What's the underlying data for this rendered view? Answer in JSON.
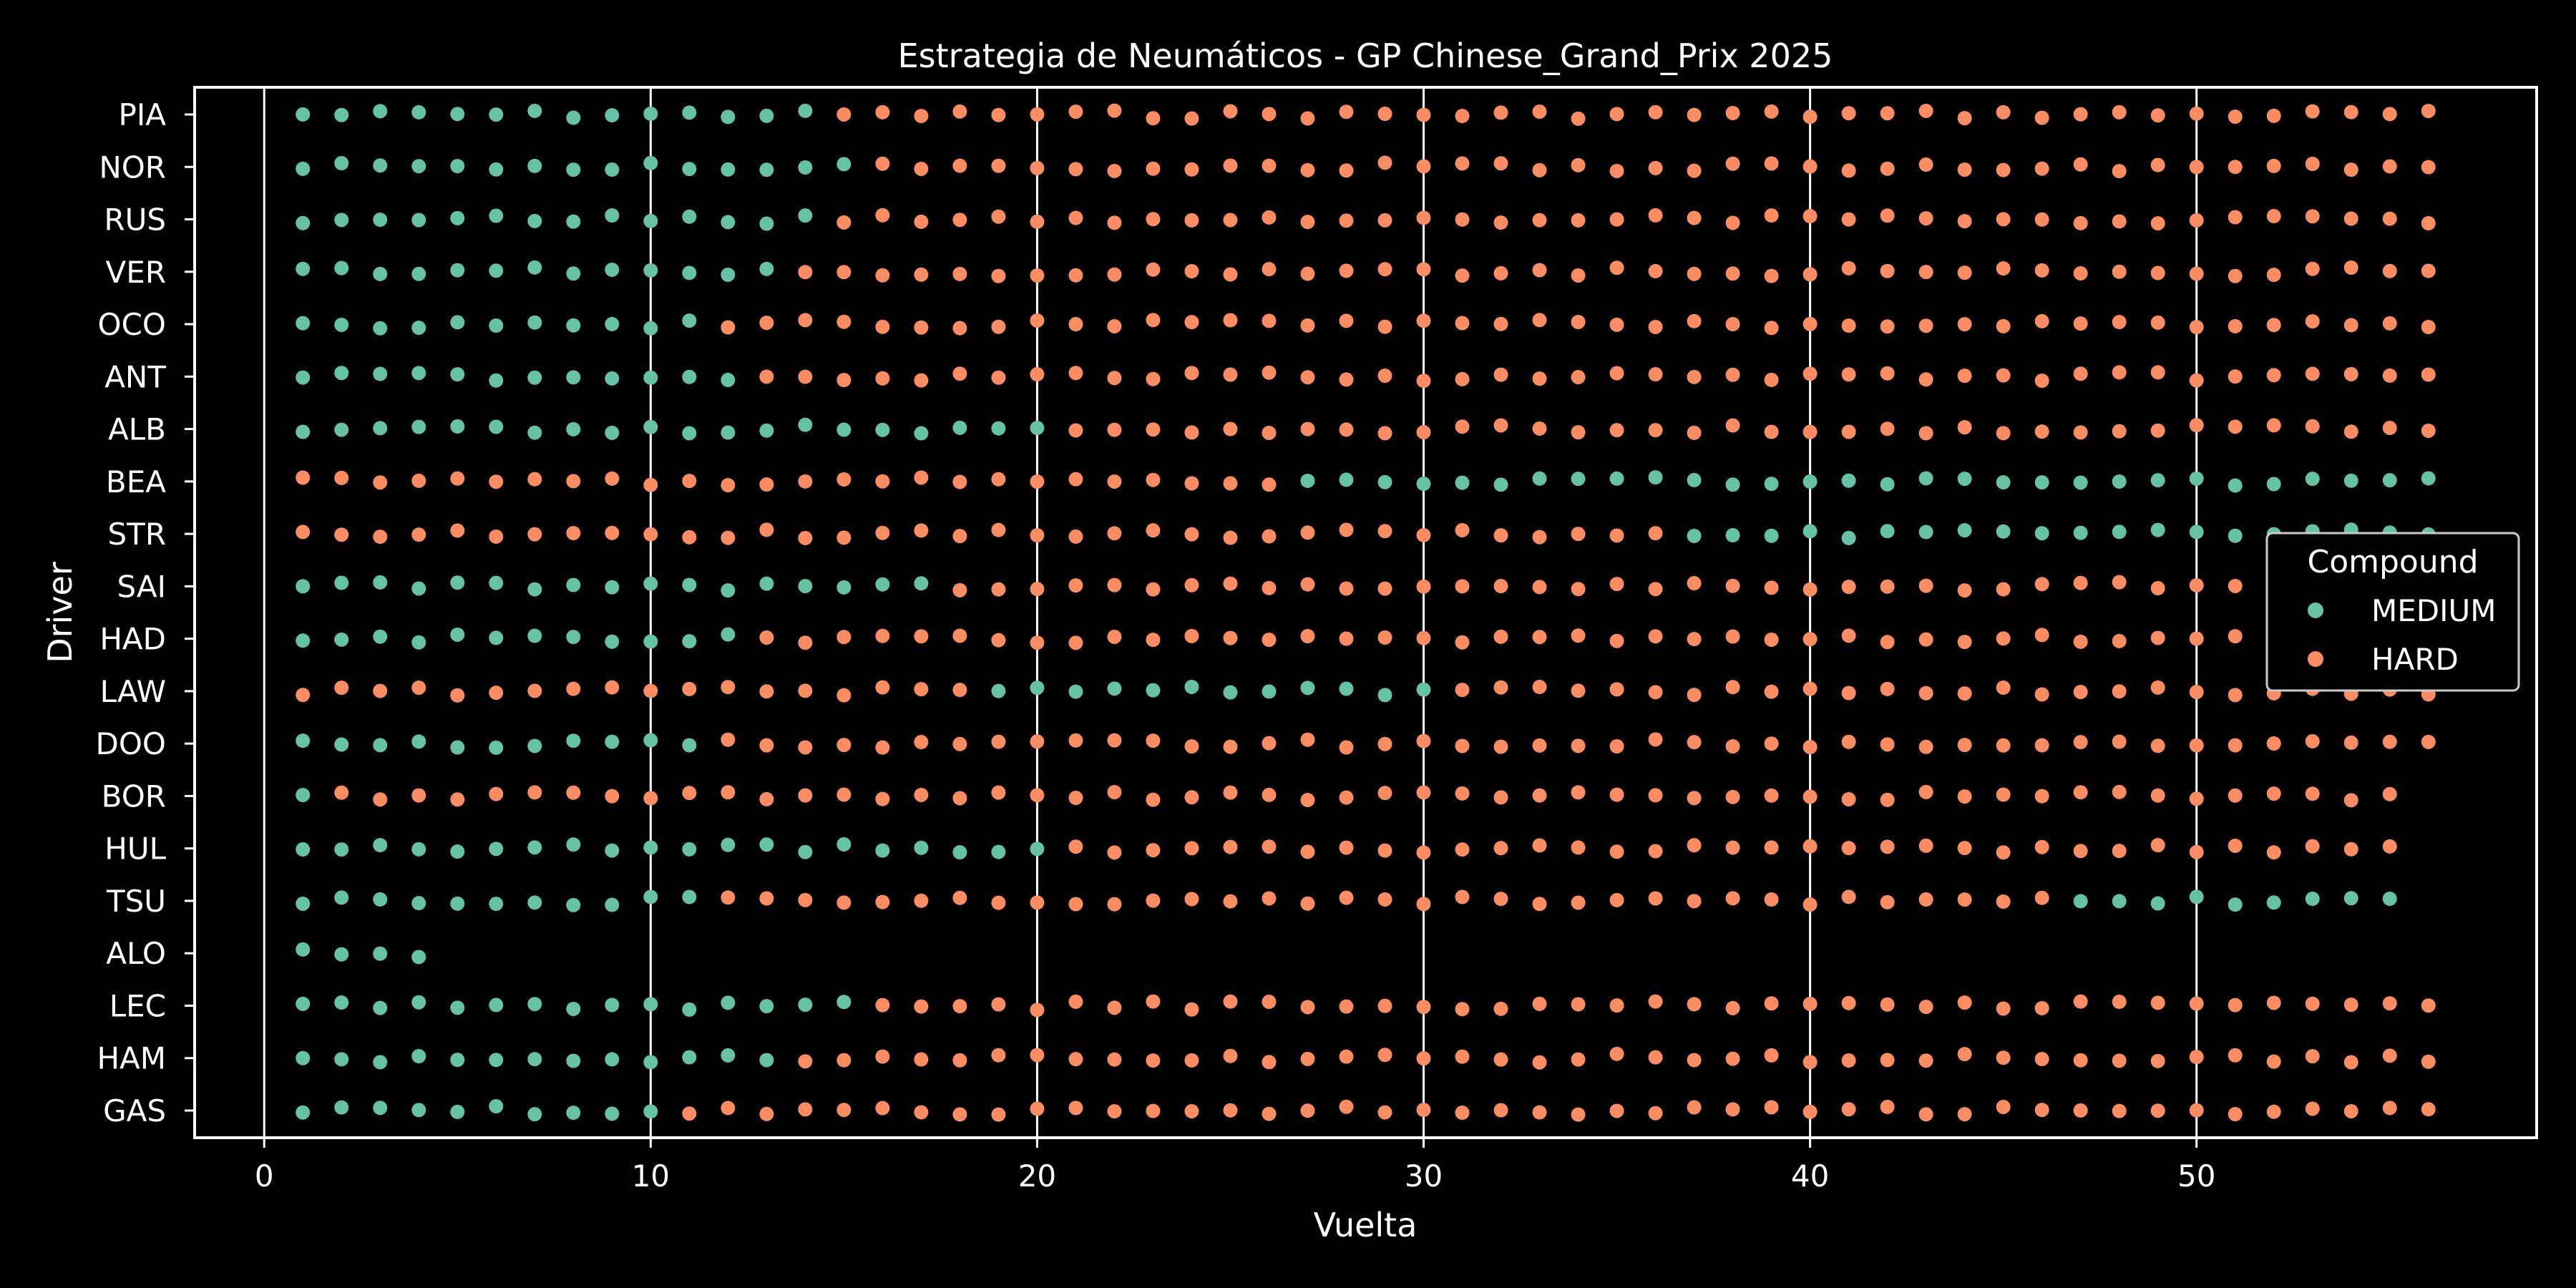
{
  "chart_data": {
    "type": "scatter",
    "title": "Estrategia de Neumáticos - GP Chinese_Grand_Prix 2025",
    "xlabel": "Vuelta",
    "ylabel": "Driver",
    "xlim": [
      -1.8,
      58.8
    ],
    "xticks": [
      0,
      10,
      20,
      30,
      40,
      50
    ],
    "grid": "vertical lines at each x tick",
    "legend": {
      "title": "Compound",
      "placement": "center-right",
      "entries": [
        {
          "label": "MEDIUM",
          "color": "#66c2a5"
        },
        {
          "label": "HARD",
          "color": "#fc8d62"
        }
      ]
    },
    "colors": {
      "MEDIUM": "#66c2a5",
      "HARD": "#fc8d62",
      "background": "#000000",
      "foreground": "#ffffff"
    },
    "drivers": [
      "PIA",
      "NOR",
      "RUS",
      "VER",
      "OCO",
      "ANT",
      "ALB",
      "BEA",
      "STR",
      "SAI",
      "HAD",
      "LAW",
      "DOO",
      "BOR",
      "HUL",
      "TSU",
      "ALO",
      "LEC",
      "HAM",
      "GAS"
    ],
    "stints": {
      "PIA": [
        {
          "compound": "MEDIUM",
          "laps": [
            1,
            14
          ]
        },
        {
          "compound": "HARD",
          "laps": [
            15,
            56
          ]
        }
      ],
      "NOR": [
        {
          "compound": "MEDIUM",
          "laps": [
            1,
            15
          ]
        },
        {
          "compound": "HARD",
          "laps": [
            16,
            56
          ]
        }
      ],
      "RUS": [
        {
          "compound": "MEDIUM",
          "laps": [
            1,
            14
          ]
        },
        {
          "compound": "HARD",
          "laps": [
            15,
            56
          ]
        }
      ],
      "VER": [
        {
          "compound": "MEDIUM",
          "laps": [
            1,
            13
          ]
        },
        {
          "compound": "HARD",
          "laps": [
            14,
            56
          ]
        }
      ],
      "OCO": [
        {
          "compound": "MEDIUM",
          "laps": [
            1,
            11
          ]
        },
        {
          "compound": "HARD",
          "laps": [
            12,
            56
          ]
        }
      ],
      "ANT": [
        {
          "compound": "MEDIUM",
          "laps": [
            1,
            12
          ]
        },
        {
          "compound": "HARD",
          "laps": [
            13,
            56
          ]
        }
      ],
      "ALB": [
        {
          "compound": "MEDIUM",
          "laps": [
            1,
            20
          ]
        },
        {
          "compound": "HARD",
          "laps": [
            21,
            56
          ]
        }
      ],
      "BEA": [
        {
          "compound": "HARD",
          "laps": [
            1,
            26
          ]
        },
        {
          "compound": "MEDIUM",
          "laps": [
            27,
            56
          ]
        }
      ],
      "STR": [
        {
          "compound": "HARD",
          "laps": [
            1,
            36
          ]
        },
        {
          "compound": "MEDIUM",
          "laps": [
            37,
            56
          ]
        }
      ],
      "SAI": [
        {
          "compound": "MEDIUM",
          "laps": [
            1,
            17
          ]
        },
        {
          "compound": "HARD",
          "laps": [
            18,
            56
          ]
        }
      ],
      "HAD": [
        {
          "compound": "MEDIUM",
          "laps": [
            1,
            12
          ]
        },
        {
          "compound": "HARD",
          "laps": [
            13,
            56
          ]
        }
      ],
      "LAW": [
        {
          "compound": "HARD",
          "laps": [
            1,
            18
          ]
        },
        {
          "compound": "MEDIUM",
          "laps": [
            19,
            30
          ]
        },
        {
          "compound": "HARD",
          "laps": [
            31,
            56
          ]
        }
      ],
      "DOO": [
        {
          "compound": "MEDIUM",
          "laps": [
            1,
            11
          ]
        },
        {
          "compound": "HARD",
          "laps": [
            12,
            56
          ]
        }
      ],
      "BOR": [
        {
          "compound": "MEDIUM",
          "laps": [
            1,
            1
          ]
        },
        {
          "compound": "HARD",
          "laps": [
            2,
            55
          ]
        }
      ],
      "HUL": [
        {
          "compound": "MEDIUM",
          "laps": [
            1,
            20
          ]
        },
        {
          "compound": "HARD",
          "laps": [
            21,
            55
          ]
        }
      ],
      "TSU": [
        {
          "compound": "MEDIUM",
          "laps": [
            1,
            11
          ]
        },
        {
          "compound": "HARD",
          "laps": [
            12,
            46
          ]
        },
        {
          "compound": "MEDIUM",
          "laps": [
            47,
            55
          ]
        }
      ],
      "ALO": [
        {
          "compound": "MEDIUM",
          "laps": [
            1,
            4
          ]
        }
      ],
      "LEC": [
        {
          "compound": "MEDIUM",
          "laps": [
            1,
            15
          ]
        },
        {
          "compound": "HARD",
          "laps": [
            16,
            56
          ]
        }
      ],
      "HAM": [
        {
          "compound": "MEDIUM",
          "laps": [
            1,
            13
          ]
        },
        {
          "compound": "HARD",
          "laps": [
            14,
            56
          ]
        }
      ],
      "GAS": [
        {
          "compound": "MEDIUM",
          "laps": [
            1,
            10
          ]
        },
        {
          "compound": "HARD",
          "laps": [
            11,
            56
          ]
        }
      ]
    }
  }
}
